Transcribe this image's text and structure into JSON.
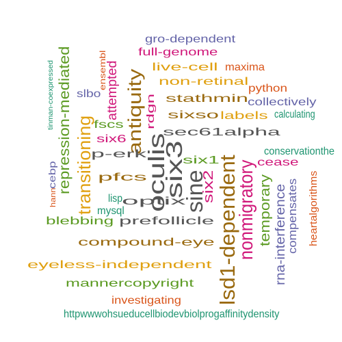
{
  "colors": {
    "gray": "#555555",
    "brown": "#9A6A10",
    "orange": "#E0A010",
    "green": "#5B9A22",
    "magenta": "#D0187A",
    "purple": "#6464A8",
    "teal": "#1E9470",
    "red": "#D9551A"
  },
  "words": [
    {
      "id": "w01",
      "text": "gro-dependent",
      "color": "purple"
    },
    {
      "id": "w02",
      "text": "full-genome",
      "color": "magenta"
    },
    {
      "id": "w03",
      "text": "ensembl",
      "color": "red"
    },
    {
      "id": "w04",
      "text": "tinman-coexpressed",
      "color": "teal"
    },
    {
      "id": "w05",
      "text": "repression-mediated",
      "color": "green"
    },
    {
      "id": "w06",
      "text": "attempted",
      "color": "magenta"
    },
    {
      "id": "w07",
      "text": "live-cell",
      "color": "orange"
    },
    {
      "id": "w08",
      "text": "maxima",
      "color": "red"
    },
    {
      "id": "w09",
      "text": "antiquity",
      "color": "brown"
    },
    {
      "id": "w10",
      "text": "non-retinal",
      "color": "orange"
    },
    {
      "id": "w11",
      "text": "python",
      "color": "red"
    },
    {
      "id": "w12",
      "text": "slbo",
      "color": "purple"
    },
    {
      "id": "w13",
      "text": "rdgn",
      "color": "magenta"
    },
    {
      "id": "w14",
      "text": "stathmin",
      "color": "brown"
    },
    {
      "id": "w15",
      "text": "collectively",
      "color": "purple"
    },
    {
      "id": "w16",
      "text": "calculating",
      "color": "teal"
    },
    {
      "id": "w17",
      "text": "fscs",
      "color": "green"
    },
    {
      "id": "w18",
      "text": "sixso",
      "color": "brown"
    },
    {
      "id": "w19",
      "text": "labels",
      "color": "orange"
    },
    {
      "id": "w20",
      "text": "transitioning",
      "color": "orange"
    },
    {
      "id": "w21",
      "text": "six6",
      "color": "magenta"
    },
    {
      "id": "w22",
      "text": "sec61alpha",
      "color": "gray"
    },
    {
      "id": "w23",
      "text": "conservationthe",
      "color": "teal"
    },
    {
      "id": "w24",
      "text": "p-erk",
      "color": "gray"
    },
    {
      "id": "w25",
      "text": "oculis",
      "color": "gray"
    },
    {
      "id": "w26",
      "text": "six3",
      "color": "gray"
    },
    {
      "id": "w27",
      "text": "six1",
      "color": "green"
    },
    {
      "id": "w28",
      "text": "cease",
      "color": "magenta"
    },
    {
      "id": "w29",
      "text": "cebp",
      "color": "purple"
    },
    {
      "id": "w30",
      "text": "pfcs",
      "color": "brown"
    },
    {
      "id": "w31",
      "text": "lsd1-dependent",
      "color": "brown"
    },
    {
      "id": "w32",
      "text": "nonmigratory",
      "color": "magenta"
    },
    {
      "id": "w33",
      "text": "hann",
      "color": "red"
    },
    {
      "id": "w34",
      "text": "sine",
      "color": "gray"
    },
    {
      "id": "w35",
      "text": "six2",
      "color": "magenta"
    },
    {
      "id": "w36",
      "text": "lisp",
      "color": "teal"
    },
    {
      "id": "w37",
      "text": "temporary",
      "color": "green"
    },
    {
      "id": "w38",
      "text": "optix",
      "color": "gray"
    },
    {
      "id": "w39",
      "text": "heartalgorithms",
      "color": "red"
    },
    {
      "id": "w40",
      "text": "compensates",
      "color": "purple"
    },
    {
      "id": "w41",
      "text": "mysql",
      "color": "teal"
    },
    {
      "id": "w42",
      "text": "rna-interference",
      "color": "purple"
    },
    {
      "id": "w43",
      "text": "blebbing",
      "color": "green"
    },
    {
      "id": "w44",
      "text": "prefollicle",
      "color": "gray"
    },
    {
      "id": "w45",
      "text": "compound-eye",
      "color": "brown"
    },
    {
      "id": "w46",
      "text": "eyeless-independent",
      "color": "orange"
    },
    {
      "id": "w47",
      "text": "mannercopyright",
      "color": "green"
    },
    {
      "id": "w48",
      "text": "investigating",
      "color": "red"
    },
    {
      "id": "w49",
      "text": "httpwwwohsueducellbiodevbiolprogaffinitydensity",
      "color": "teal"
    }
  ]
}
